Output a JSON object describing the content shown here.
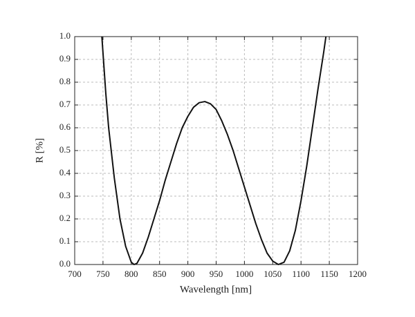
{
  "chart_data": {
    "type": "line",
    "xlabel": "Wavelength [nm]",
    "ylabel": "R [%]",
    "x": [
      748,
      755,
      760,
      770,
      780,
      790,
      800,
      805,
      810,
      820,
      830,
      840,
      850,
      860,
      870,
      880,
      890,
      900,
      910,
      920,
      930,
      940,
      950,
      960,
      970,
      980,
      990,
      1000,
      1010,
      1020,
      1030,
      1040,
      1050,
      1060,
      1070,
      1080,
      1090,
      1100,
      1110,
      1120,
      1130,
      1140,
      1144
    ],
    "series": [
      {
        "color": "#111111",
        "values": [
          1.0,
          0.75,
          0.6,
          0.38,
          0.2,
          0.08,
          0.01,
          0.0,
          0.005,
          0.05,
          0.12,
          0.2,
          0.28,
          0.37,
          0.45,
          0.53,
          0.6,
          0.65,
          0.69,
          0.71,
          0.715,
          0.705,
          0.68,
          0.63,
          0.57,
          0.5,
          0.42,
          0.34,
          0.26,
          0.18,
          0.11,
          0.05,
          0.015,
          0.0,
          0.01,
          0.06,
          0.15,
          0.28,
          0.43,
          0.6,
          0.77,
          0.93,
          1.0
        ]
      }
    ],
    "xlim": [
      700,
      1200
    ],
    "xticks": [
      700,
      750,
      800,
      850,
      900,
      950,
      1000,
      1050,
      1100,
      1150,
      1200
    ],
    "ylim": [
      0,
      1
    ],
    "yticks": [
      {
        "value": 0,
        "label": "0.0"
      },
      0.1,
      0.2,
      0.3,
      0.4,
      0.5,
      0.6,
      0.7,
      0.8,
      0.9,
      {
        "value": 1,
        "label": "1.0"
      }
    ],
    "grid": true
  }
}
